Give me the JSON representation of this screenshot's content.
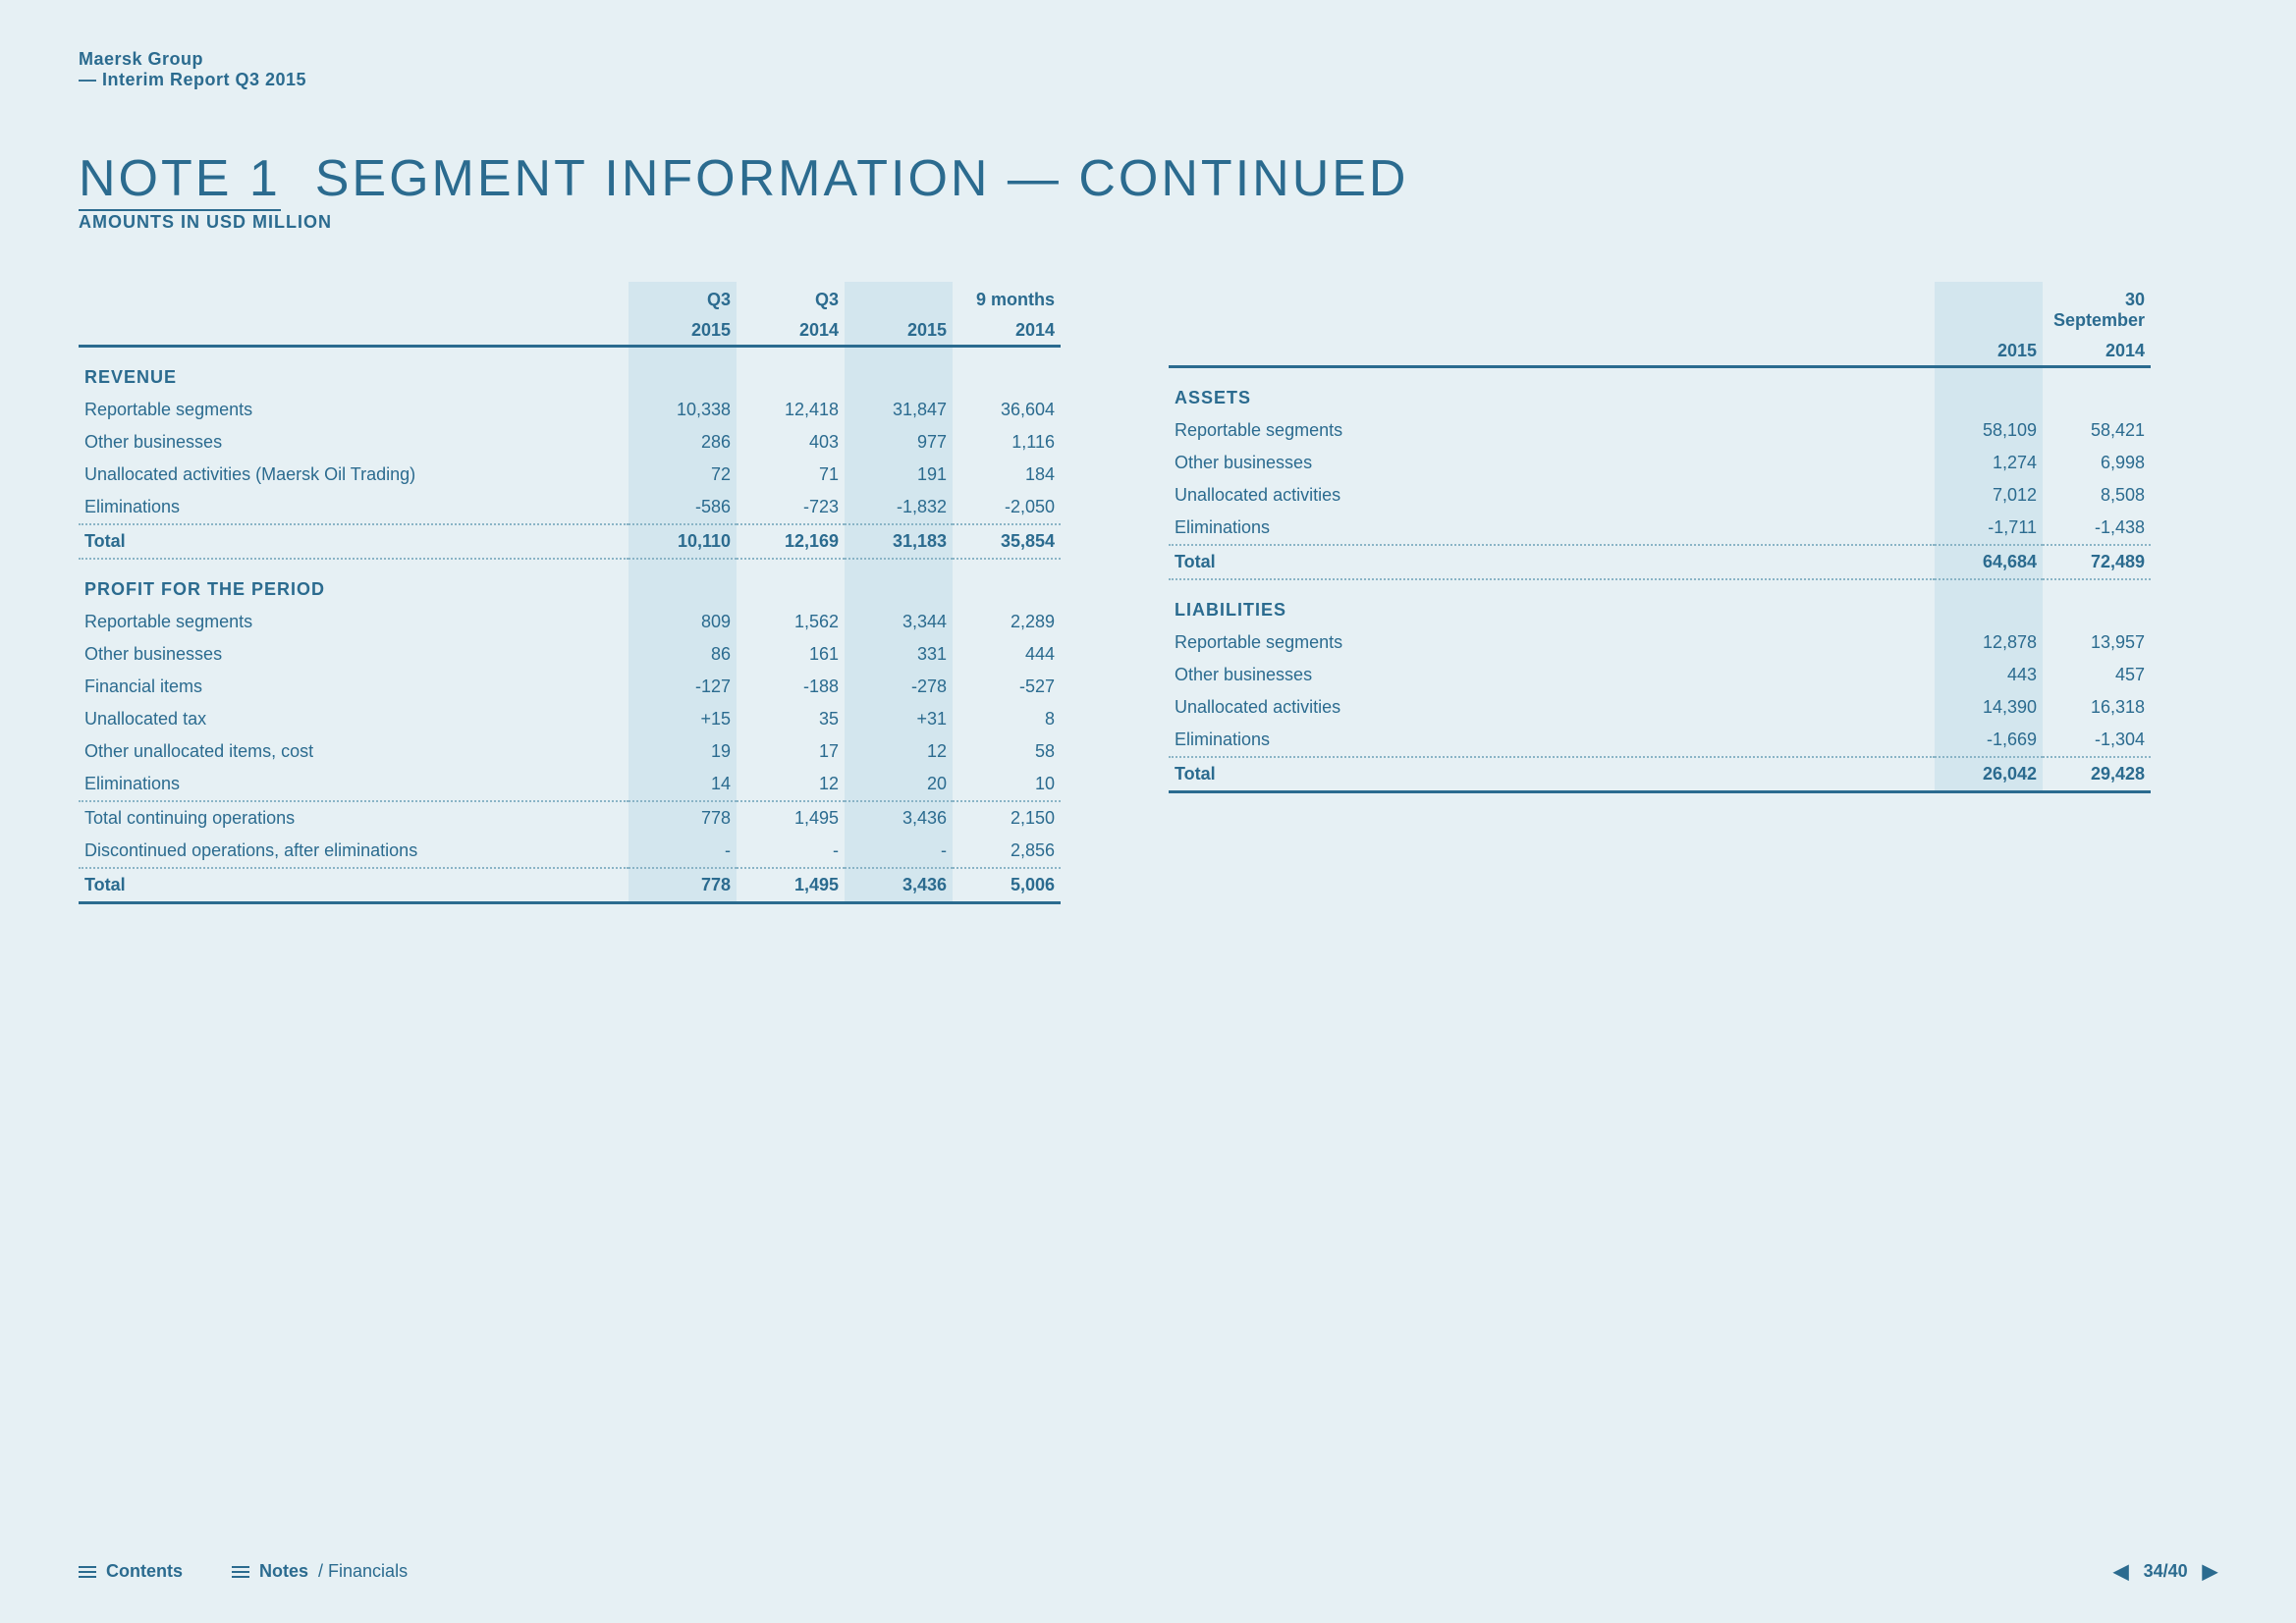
{
  "meta": {
    "company": "Maersk Group",
    "report": "— Interim Report Q3 2015"
  },
  "title": {
    "note": "NOTE 1",
    "rest": "SEGMENT INFORMATION — CONTINUED",
    "subtitle": "AMOUNTS IN USD MILLION"
  },
  "left": {
    "header": {
      "q": "Q3",
      "m": "9 months",
      "y15": "2015",
      "y14": "2014"
    },
    "revenue": {
      "title": "REVENUE",
      "rows": [
        {
          "label": "Reportable segments",
          "q15": "10,338",
          "q14": "12,418",
          "m15": "31,847",
          "m14": "36,604"
        },
        {
          "label": "Other businesses",
          "q15": "286",
          "q14": "403",
          "m15": "977",
          "m14": "1,116"
        },
        {
          "label": "Unallocated activities  (Maersk Oil Trading)",
          "q15": "72",
          "q14": "71",
          "m15": "191",
          "m14": "184"
        },
        {
          "label": "Eliminations",
          "q15": "-586",
          "q14": "-723",
          "m15": "-1,832",
          "m14": "-2,050"
        }
      ],
      "total": {
        "label": "Total",
        "q15": "10,110",
        "q14": "12,169",
        "m15": "31,183",
        "m14": "35,854"
      }
    },
    "profit": {
      "title": "PROFIT FOR THE PERIOD",
      "rows": [
        {
          "label": "Reportable segments",
          "q15": "809",
          "q14": "1,562",
          "m15": "3,344",
          "m14": "2,289"
        },
        {
          "label": "Other businesses",
          "q15": "86",
          "q14": "161",
          "m15": "331",
          "m14": "444"
        },
        {
          "label": "Financial items",
          "q15": "-127",
          "q14": "-188",
          "m15": "-278",
          "m14": "-527"
        },
        {
          "label": "Unallocated tax",
          "q15": "+15",
          "q14": "35",
          "m15": "+31",
          "m14": "8"
        },
        {
          "label": "Other unallocated items, cost",
          "q15": "19",
          "q14": "17",
          "m15": "12",
          "m14": "58"
        },
        {
          "label": "Eliminations",
          "q15": "14",
          "q14": "12",
          "m15": "20",
          "m14": "10"
        }
      ],
      "cont": {
        "label": "Total continuing operations",
        "q15": "778",
        "q14": "1,495",
        "m15": "3,436",
        "m14": "2,150"
      },
      "disc": {
        "label": "Discontinued operations, after eliminations",
        "q15": "-",
        "q14": "-",
        "m15": "-",
        "m14": "2,856"
      },
      "total": {
        "label": "Total",
        "q15": "778",
        "q14": "1,495",
        "m15": "3,436",
        "m14": "5,006"
      }
    }
  },
  "right": {
    "header": {
      "date": "30 September",
      "y15": "2015",
      "y14": "2014"
    },
    "assets": {
      "title": "ASSETS",
      "rows": [
        {
          "label": "Reportable segments",
          "y15": "58,109",
          "y14": "58,421"
        },
        {
          "label": "Other businesses",
          "y15": "1,274",
          "y14": "6,998"
        },
        {
          "label": "Unallocated activities",
          "y15": "7,012",
          "y14": "8,508"
        },
        {
          "label": "Eliminations",
          "y15": "-1,711",
          "y14": "-1,438"
        }
      ],
      "total": {
        "label": "Total",
        "y15": "64,684",
        "y14": "72,489"
      }
    },
    "liab": {
      "title": "LIABILITIES",
      "rows": [
        {
          "label": "Reportable segments",
          "y15": "12,878",
          "y14": "13,957"
        },
        {
          "label": "Other businesses",
          "y15": "443",
          "y14": "457"
        },
        {
          "label": "Unallocated activities",
          "y15": "14,390",
          "y14": "16,318"
        },
        {
          "label": "Eliminations",
          "y15": "-1,669",
          "y14": "-1,304"
        }
      ],
      "total": {
        "label": "Total",
        "y15": "26,042",
        "y14": "29,428"
      }
    }
  },
  "footer": {
    "contents": "Contents",
    "notes": "Notes",
    "fin": "/ Financials",
    "page": "34/40"
  }
}
